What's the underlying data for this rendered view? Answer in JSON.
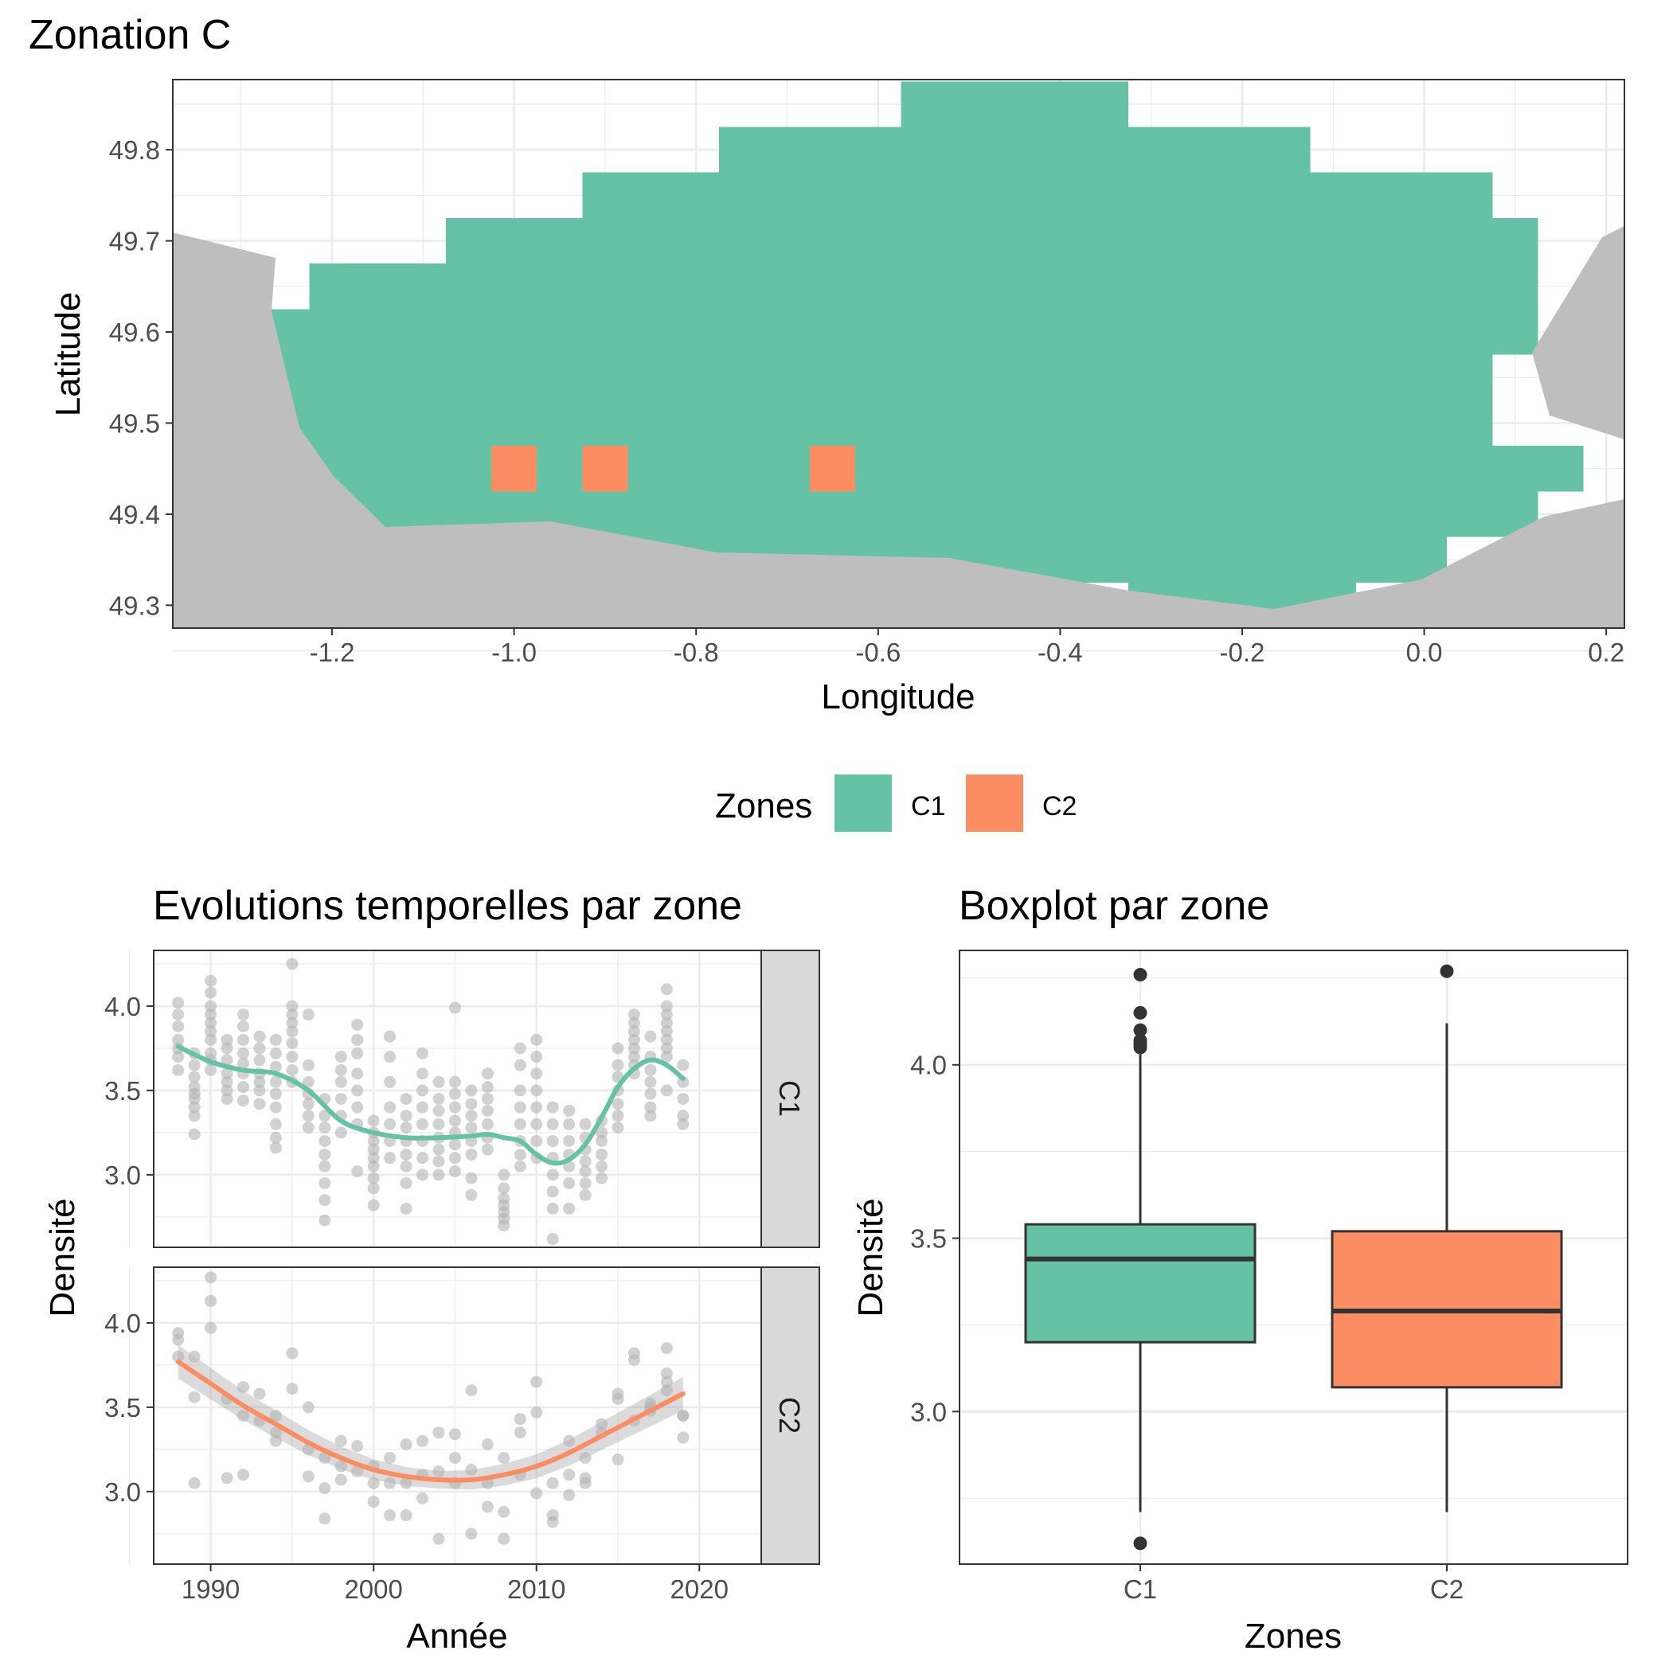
{
  "colors": {
    "C1": "#66c2a5",
    "C2": "#fc8d62",
    "land": "#bebebe",
    "points": "#b3b3b3",
    "grid": "#ebebeb",
    "box_line": "#333333"
  },
  "map": {
    "title": "Zonation C",
    "xlabel": "Longitude",
    "ylabel": "Latitude",
    "x_ticks": [
      "-1.2",
      "-1.0",
      "-0.8",
      "-0.6",
      "-0.4",
      "-0.2",
      "0.0",
      "0.2"
    ],
    "y_ticks": [
      "49.3",
      "49.4",
      "49.5",
      "49.6",
      "49.7",
      "49.8"
    ]
  },
  "legend": {
    "title": "Zones",
    "items": [
      {
        "label": "C1",
        "color": "#66c2a5"
      },
      {
        "label": "C2",
        "color": "#fc8d62"
      }
    ]
  },
  "timeseries": {
    "title": "Evolutions temporelles par zone",
    "xlabel": "Année",
    "ylabel": "Densité",
    "x_ticks": [
      "1990",
      "2000",
      "2010",
      "2020"
    ],
    "y_ticks": [
      "3.0",
      "3.5",
      "4.0"
    ],
    "facets": [
      "C1",
      "C2"
    ]
  },
  "boxplot": {
    "title": "Boxplot par zone",
    "xlabel": "Zones",
    "ylabel": "Densité",
    "x_ticks": [
      "C1",
      "C2"
    ],
    "y_ticks": [
      "3.0",
      "3.5",
      "4.0"
    ]
  },
  "chart_data": [
    {
      "type": "heatmap",
      "title": "Zonation C",
      "xlabel": "Longitude",
      "ylabel": "Latitude",
      "xlim": [
        -1.375,
        0.22
      ],
      "ylim": [
        49.275,
        49.877
      ],
      "grid": true,
      "cell_size_deg": 0.05,
      "zones": [
        "C1",
        "C2"
      ],
      "C1_row_extents": [
        {
          "lat": 49.85,
          "lon_min": -0.575,
          "lon_max": -0.325
        },
        {
          "lat": 49.8,
          "lon_min": -0.775,
          "lon_max": -0.125
        },
        {
          "lat": 49.75,
          "lon_min": -0.925,
          "lon_max": 0.075
        },
        {
          "lat": 49.7,
          "lon_min": -1.075,
          "lon_max": 0.125
        },
        {
          "lat": 49.65,
          "lon_min": -1.225,
          "lon_max": 0.125
        },
        {
          "lat": 49.6,
          "lon_min": -1.275,
          "lon_max": 0.125
        },
        {
          "lat": 49.55,
          "lon_min": -1.275,
          "lon_max": 0.075
        },
        {
          "lat": 49.5,
          "lon_min": -1.275,
          "lon_max": 0.075
        },
        {
          "lat": 49.45,
          "lon_min": -1.275,
          "lon_max": 0.175
        },
        {
          "lat": 49.4,
          "lon_min": -1.275,
          "lon_max": 0.125
        },
        {
          "lat": 49.35,
          "lon_min": -1.275,
          "lon_max": 0.025
        },
        {
          "lat": 49.3,
          "lon_min": -0.325,
          "lon_max": -0.075
        }
      ],
      "C2_cells": [
        {
          "lon": -1.0,
          "lat": 49.45
        },
        {
          "lon": -0.9,
          "lat": 49.45
        },
        {
          "lon": -0.65,
          "lat": 49.45
        }
      ]
    },
    {
      "type": "scatter",
      "title": "Evolutions temporelles par zone",
      "xlabel": "Année",
      "ylabel": "Densité",
      "xlim": [
        1986.5,
        2023.8
      ],
      "ylim": [
        2.57,
        4.33
      ],
      "grid": true,
      "facets": [
        "C1",
        "C2"
      ],
      "series": [
        {
          "name": "C1",
          "x": [
            1988,
            1988,
            1988,
            1988,
            1988,
            1988,
            1988,
            1989,
            1989,
            1989,
            1989,
            1989,
            1989,
            1989,
            1989,
            1989,
            1990,
            1990,
            1990,
            1990,
            1990,
            1990,
            1990,
            1990,
            1990,
            1990,
            1991,
            1991,
            1991,
            1991,
            1991,
            1991,
            1991,
            1992,
            1992,
            1992,
            1992,
            1992,
            1992,
            1992,
            1992,
            1993,
            1993,
            1993,
            1993,
            1993,
            1993,
            1993,
            1994,
            1994,
            1994,
            1994,
            1994,
            1994,
            1994,
            1994,
            1994,
            1995,
            1995,
            1995,
            1995,
            1995,
            1995,
            1995,
            1995,
            1995,
            1996,
            1996,
            1996,
            1996,
            1996,
            1996,
            1996,
            1997,
            1997,
            1997,
            1997,
            1997,
            1997,
            1997,
            1997,
            1997,
            1998,
            1998,
            1998,
            1998,
            1998,
            1998,
            1999,
            1999,
            1999,
            1999,
            1999,
            1999,
            1999,
            1999,
            2000,
            2000,
            2000,
            2000,
            2000,
            2000,
            2000,
            2000,
            2000,
            2001,
            2001,
            2001,
            2001,
            2001,
            2001,
            2001,
            2002,
            2002,
            2002,
            2002,
            2002,
            2002,
            2002,
            2002,
            2003,
            2003,
            2003,
            2003,
            2003,
            2003,
            2003,
            2003,
            2004,
            2004,
            2004,
            2004,
            2004,
            2004,
            2004,
            2004,
            2005,
            2005,
            2005,
            2005,
            2005,
            2005,
            2005,
            2005,
            2005,
            2006,
            2006,
            2006,
            2006,
            2006,
            2006,
            2006,
            2006,
            2007,
            2007,
            2007,
            2007,
            2007,
            2007,
            2007,
            2008,
            2008,
            2008,
            2008,
            2008,
            2008,
            2008,
            2009,
            2009,
            2009,
            2009,
            2009,
            2009,
            2009,
            2009,
            2010,
            2010,
            2010,
            2010,
            2010,
            2010,
            2010,
            2010,
            2011,
            2011,
            2011,
            2011,
            2011,
            2011,
            2011,
            2011,
            2012,
            2012,
            2012,
            2012,
            2012,
            2012,
            2012,
            2013,
            2013,
            2013,
            2013,
            2013,
            2013,
            2013,
            2014,
            2014,
            2014,
            2014,
            2014,
            2014,
            2015,
            2015,
            2015,
            2015,
            2015,
            2015,
            2015,
            2016,
            2016,
            2016,
            2016,
            2016,
            2016,
            2016,
            2016,
            2017,
            2017,
            2017,
            2017,
            2017,
            2017,
            2017,
            2018,
            2018,
            2018,
            2018,
            2018,
            2018,
            2018,
            2018,
            2018,
            2019,
            2019,
            2019,
            2019,
            2019
          ],
          "values": [
            4.02,
            3.95,
            3.88,
            3.8,
            3.75,
            3.7,
            3.62,
            3.72,
            3.65,
            3.58,
            3.52,
            3.48,
            3.45,
            3.4,
            3.35,
            3.24,
            4.15,
            4.08,
            4.0,
            3.95,
            3.9,
            3.85,
            3.8,
            3.72,
            3.68,
            3.62,
            3.8,
            3.75,
            3.68,
            3.6,
            3.55,
            3.5,
            3.45,
            3.95,
            3.88,
            3.8,
            3.72,
            3.66,
            3.6,
            3.52,
            3.44,
            3.82,
            3.75,
            3.68,
            3.6,
            3.55,
            3.5,
            3.42,
            3.8,
            3.72,
            3.64,
            3.55,
            3.48,
            3.4,
            3.3,
            3.22,
            3.16,
            4.25,
            4.0,
            3.95,
            3.9,
            3.85,
            3.78,
            3.7,
            3.62,
            3.55,
            3.95,
            3.65,
            3.55,
            3.48,
            3.42,
            3.35,
            3.28,
            3.45,
            3.35,
            3.28,
            3.2,
            3.12,
            3.05,
            2.95,
            2.85,
            2.73,
            3.7,
            3.62,
            3.55,
            3.45,
            3.35,
            3.25,
            3.89,
            3.8,
            3.72,
            3.6,
            3.5,
            3.4,
            3.3,
            3.02,
            3.32,
            3.25,
            3.2,
            3.15,
            3.1,
            3.05,
            2.98,
            2.92,
            2.82,
            3.82,
            3.7,
            3.55,
            3.4,
            3.3,
            3.2,
            3.1,
            3.45,
            3.35,
            3.28,
            3.2,
            3.12,
            3.05,
            2.95,
            2.8,
            3.72,
            3.6,
            3.5,
            3.4,
            3.3,
            3.2,
            3.1,
            3.0,
            3.55,
            3.45,
            3.38,
            3.3,
            3.22,
            3.15,
            3.08,
            3.0,
            3.99,
            3.55,
            3.48,
            3.4,
            3.32,
            3.25,
            3.18,
            3.1,
            3.02,
            3.5,
            3.42,
            3.35,
            3.28,
            3.2,
            3.12,
            2.98,
            2.88,
            3.6,
            3.52,
            3.45,
            3.38,
            3.3,
            3.22,
            3.15,
            3.0,
            2.92,
            2.86,
            2.82,
            2.78,
            2.74,
            2.7,
            3.75,
            3.65,
            3.5,
            3.4,
            3.3,
            3.2,
            3.12,
            3.05,
            3.8,
            3.7,
            3.6,
            3.5,
            3.4,
            3.3,
            3.2,
            3.1,
            3.4,
            3.3,
            3.2,
            3.1,
            3.0,
            2.9,
            2.8,
            2.62,
            3.38,
            3.3,
            3.2,
            3.12,
            3.05,
            2.95,
            2.8,
            3.3,
            3.22,
            3.15,
            3.08,
            3.02,
            2.95,
            2.88,
            3.32,
            3.25,
            3.2,
            3.12,
            3.05,
            2.98,
            3.75,
            3.65,
            3.58,
            3.5,
            3.42,
            3.35,
            3.28,
            3.95,
            3.9,
            3.85,
            3.8,
            3.75,
            3.7,
            3.65,
            3.6,
            3.82,
            3.7,
            3.62,
            3.55,
            3.48,
            3.4,
            3.35,
            4.1,
            4.0,
            3.95,
            3.9,
            3.85,
            3.8,
            3.75,
            3.7,
            3.5,
            3.65,
            3.55,
            3.45,
            3.35,
            3.3
          ]
        },
        {
          "name": "C2",
          "x": [
            1988,
            1988,
            1988,
            1989,
            1989,
            1989,
            1990,
            1990,
            1990,
            1991,
            1991,
            1992,
            1992,
            1992,
            1993,
            1993,
            1994,
            1994,
            1994,
            1995,
            1995,
            1996,
            1996,
            1996,
            1997,
            1997,
            1997,
            1998,
            1998,
            1998,
            1999,
            1999,
            2000,
            2000,
            2000,
            2001,
            2001,
            2001,
            2002,
            2002,
            2002,
            2003,
            2003,
            2003,
            2004,
            2004,
            2004,
            2005,
            2005,
            2005,
            2006,
            2006,
            2006,
            2007,
            2007,
            2007,
            2008,
            2008,
            2008,
            2009,
            2009,
            2009,
            2010,
            2010,
            2010,
            2011,
            2011,
            2011,
            2012,
            2012,
            2012,
            2013,
            2013,
            2013,
            2014,
            2014,
            2015,
            2015,
            2015,
            2016,
            2016,
            2016,
            2017,
            2017,
            2017,
            2018,
            2018,
            2018,
            2018,
            2019,
            2019,
            2019
          ],
          "values": [
            3.94,
            3.9,
            3.8,
            3.8,
            3.56,
            3.05,
            4.27,
            4.13,
            3.97,
            3.55,
            3.08,
            3.62,
            3.45,
            3.1,
            3.58,
            3.42,
            3.45,
            3.35,
            3.3,
            3.82,
            3.61,
            3.5,
            3.25,
            3.09,
            3.2,
            3.02,
            2.84,
            3.3,
            3.15,
            3.07,
            3.27,
            3.12,
            3.15,
            3.05,
            2.94,
            3.2,
            3.05,
            2.86,
            3.28,
            3.05,
            2.86,
            3.3,
            3.1,
            2.96,
            3.35,
            3.12,
            2.72,
            3.34,
            3.2,
            3.05,
            3.6,
            3.13,
            2.75,
            3.28,
            3.05,
            2.91,
            3.2,
            2.88,
            2.72,
            3.43,
            3.35,
            3.1,
            3.65,
            3.47,
            2.99,
            3.05,
            2.86,
            2.82,
            3.3,
            3.1,
            2.98,
            3.2,
            3.08,
            3.05,
            3.4,
            3.35,
            3.58,
            3.55,
            3.19,
            3.82,
            3.78,
            3.42,
            3.52,
            3.48,
            3.5,
            3.85,
            3.7,
            3.65,
            3.6,
            3.45,
            3.45,
            3.32
          ]
        }
      ],
      "smooth": [
        {
          "name": "C1",
          "x": [
            1988,
            1990,
            1992,
            1994,
            1996,
            1998,
            2000,
            2002,
            2004,
            2006,
            2007,
            2008,
            2009,
            2010,
            2011,
            2012,
            2013,
            2014,
            2015,
            2016,
            2017,
            2018,
            2019
          ],
          "y": [
            3.76,
            3.67,
            3.62,
            3.6,
            3.5,
            3.32,
            3.25,
            3.22,
            3.22,
            3.23,
            3.24,
            3.22,
            3.2,
            3.12,
            3.07,
            3.09,
            3.18,
            3.34,
            3.52,
            3.63,
            3.68,
            3.65,
            3.57
          ]
        },
        {
          "name": "C2",
          "x": [
            1988,
            1990,
            1992,
            1994,
            1996,
            1998,
            2000,
            2002,
            2004,
            2006,
            2008,
            2010,
            2012,
            2014,
            2016,
            2018,
            2019
          ],
          "y": [
            3.77,
            3.64,
            3.51,
            3.4,
            3.29,
            3.2,
            3.13,
            3.09,
            3.07,
            3.07,
            3.1,
            3.15,
            3.23,
            3.33,
            3.43,
            3.53,
            3.58
          ]
        }
      ]
    },
    {
      "type": "boxplot",
      "title": "Boxplot par zone",
      "xlabel": "Zones",
      "ylabel": "Densité",
      "categories": [
        "C1",
        "C2"
      ],
      "ylim": [
        2.56,
        4.33
      ],
      "grid": true,
      "boxes": [
        {
          "name": "C1",
          "lower_whisker": 2.71,
          "q1": 3.2,
          "median": 3.44,
          "q3": 3.54,
          "upper_whisker": 4.03,
          "outliers": [
            4.26,
            4.15,
            4.1,
            4.07,
            4.06,
            4.05,
            2.62
          ]
        },
        {
          "name": "C2",
          "lower_whisker": 2.71,
          "q1": 3.07,
          "median": 3.29,
          "q3": 3.52,
          "upper_whisker": 4.12,
          "outliers": [
            4.27
          ]
        }
      ]
    }
  ]
}
